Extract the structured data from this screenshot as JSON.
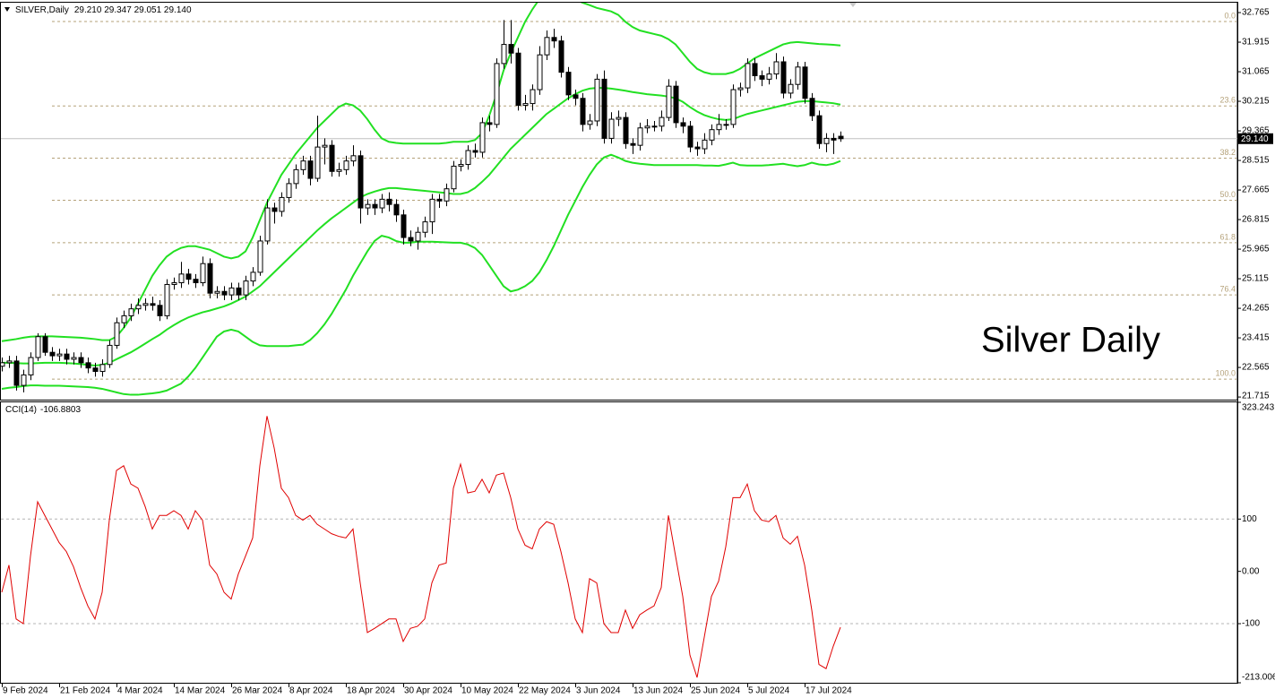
{
  "chart_data": [
    {
      "type": "candlestick",
      "title": "SILVER,Daily",
      "subtitle": "29.210 29.347 29.051 29.140",
      "annotation": "Silver Daily",
      "categories": [
        "9 Feb 2024",
        null,
        null,
        null,
        null,
        null,
        null,
        null,
        "21 Feb 2024",
        null,
        null,
        null,
        null,
        null,
        null,
        null,
        "4 Mar 2024",
        null,
        null,
        null,
        null,
        null,
        null,
        null,
        "14 Mar 2024",
        null,
        null,
        null,
        null,
        null,
        null,
        null,
        "26 Mar 2024",
        null,
        null,
        null,
        null,
        null,
        null,
        null,
        "8 Apr 2024",
        null,
        null,
        null,
        null,
        null,
        null,
        null,
        "18 Apr 2024",
        null,
        null,
        null,
        null,
        null,
        null,
        null,
        "30 Apr 2024",
        null,
        null,
        null,
        null,
        null,
        null,
        null,
        "10 May 2024",
        null,
        null,
        null,
        null,
        null,
        null,
        null,
        "22 May 2024",
        null,
        null,
        null,
        null,
        null,
        null,
        null,
        "3 Jun 2024",
        null,
        null,
        null,
        null,
        null,
        null,
        null,
        "13 Jun 2024",
        null,
        null,
        null,
        null,
        null,
        null,
        null,
        "25 Jun 2024",
        null,
        null,
        null,
        null,
        null,
        null,
        null,
        "5 Jul 2024",
        null,
        null,
        null,
        null,
        null,
        null,
        null,
        "17 Jul 2024",
        null,
        null,
        null,
        null,
        null
      ],
      "open": [
        22.6,
        22.7,
        22.75,
        22.05,
        22.35,
        22.85,
        23.45,
        23.0,
        22.9,
        22.95,
        22.8,
        22.85,
        22.7,
        22.55,
        22.45,
        22.65,
        23.2,
        23.85,
        24.05,
        24.25,
        24.35,
        24.4,
        24.35,
        24.05,
        24.95,
        25.0,
        25.25,
        25.1,
        25.0,
        25.55,
        24.7,
        24.75,
        24.65,
        24.85,
        24.65,
        25.05,
        25.3,
        26.2,
        27.15,
        27.05,
        27.45,
        27.85,
        28.25,
        28.5,
        28.0,
        28.9,
        28.95,
        28.2,
        28.25,
        28.5,
        28.65,
        27.15,
        27.25,
        27.15,
        27.4,
        27.25,
        26.95,
        26.3,
        26.2,
        26.45,
        26.75,
        27.4,
        27.35,
        27.7,
        28.35,
        28.4,
        28.8,
        28.75,
        29.6,
        29.55,
        31.3,
        31.85,
        31.6,
        30.1,
        30.15,
        30.55,
        31.55,
        32.05,
        31.95,
        31.05,
        30.4,
        30.3,
        29.55,
        29.65,
        30.85,
        29.15,
        29.7,
        29.75,
        29.0,
        28.95,
        29.45,
        29.5,
        29.5,
        29.75,
        30.65,
        29.6,
        29.5,
        28.9,
        28.85,
        29.1,
        29.4,
        29.55,
        29.55,
        30.55,
        30.6,
        31.3,
        30.95,
        30.85,
        31.0,
        31.35,
        30.45,
        30.7,
        31.2,
        30.3,
        29.8,
        29.0,
        29.15,
        29.21
      ],
      "high": [
        22.85,
        22.9,
        22.9,
        22.5,
        23.0,
        23.55,
        23.55,
        23.15,
        23.1,
        23.1,
        23.0,
        23.0,
        22.85,
        22.7,
        22.8,
        23.35,
        24.0,
        24.2,
        24.4,
        24.55,
        24.55,
        24.6,
        24.5,
        25.1,
        25.15,
        25.6,
        25.4,
        25.25,
        25.75,
        25.7,
        24.9,
        24.9,
        25.0,
        25.0,
        25.2,
        25.45,
        26.35,
        27.4,
        27.3,
        27.6,
        28.0,
        28.4,
        28.65,
        28.65,
        29.8,
        29.15,
        29.1,
        28.45,
        28.65,
        28.95,
        28.8,
        27.4,
        27.4,
        27.55,
        27.6,
        27.4,
        27.1,
        26.5,
        26.6,
        26.9,
        27.55,
        27.55,
        27.85,
        28.5,
        28.55,
        28.95,
        29.0,
        29.75,
        29.8,
        31.45,
        32.55,
        32.55,
        31.75,
        30.4,
        30.7,
        31.8,
        32.25,
        32.3,
        32.1,
        31.2,
        30.55,
        30.45,
        29.85,
        31.0,
        31.1,
        29.9,
        29.95,
        29.9,
        29.15,
        29.6,
        29.7,
        29.65,
        29.95,
        30.85,
        30.8,
        29.75,
        29.65,
        29.05,
        29.3,
        29.55,
        29.85,
        29.7,
        30.7,
        30.75,
        31.45,
        31.45,
        31.1,
        31.2,
        31.6,
        31.5,
        30.85,
        31.35,
        31.35,
        30.45,
        29.95,
        29.3,
        29.3,
        29.347
      ],
      "low": [
        22.45,
        22.55,
        21.9,
        21.85,
        22.2,
        22.75,
        22.9,
        22.75,
        22.75,
        22.65,
        22.65,
        22.55,
        22.4,
        22.3,
        22.3,
        22.55,
        23.1,
        23.7,
        23.9,
        24.1,
        24.2,
        24.2,
        23.9,
        23.95,
        24.8,
        24.85,
        24.95,
        24.85,
        24.9,
        24.55,
        24.55,
        24.5,
        24.5,
        24.5,
        24.5,
        24.9,
        25.2,
        26.1,
        26.7,
        26.9,
        27.3,
        27.7,
        28.1,
        27.8,
        27.9,
        28.4,
        28.05,
        28.05,
        28.1,
        28.35,
        26.7,
        26.95,
        26.95,
        27.0,
        27.05,
        26.75,
        26.1,
        26.05,
        25.95,
        26.3,
        26.4,
        27.15,
        27.2,
        27.6,
        28.2,
        28.25,
        28.6,
        28.6,
        29.35,
        29.45,
        31.15,
        31.3,
        29.95,
        29.95,
        29.95,
        30.4,
        31.4,
        31.75,
        30.9,
        30.25,
        30.1,
        29.35,
        29.4,
        29.5,
        29.0,
        29.0,
        29.5,
        28.85,
        28.7,
        28.8,
        29.3,
        29.35,
        29.35,
        29.65,
        29.45,
        29.3,
        28.75,
        28.65,
        28.7,
        28.95,
        29.25,
        29.4,
        29.45,
        30.35,
        30.45,
        30.8,
        30.65,
        30.7,
        30.85,
        30.3,
        30.3,
        30.55,
        30.15,
        29.65,
        28.85,
        28.75,
        28.7,
        29.051
      ],
      "close": [
        22.7,
        22.75,
        22.05,
        22.35,
        22.85,
        23.45,
        23.0,
        22.9,
        22.95,
        22.8,
        22.85,
        22.7,
        22.55,
        22.45,
        22.65,
        23.2,
        23.85,
        24.05,
        24.25,
        24.35,
        24.4,
        24.35,
        24.05,
        24.95,
        25.0,
        25.25,
        25.1,
        25.0,
        25.55,
        24.7,
        24.75,
        24.65,
        24.85,
        24.65,
        25.05,
        25.3,
        26.2,
        27.15,
        27.05,
        27.45,
        27.85,
        28.25,
        28.5,
        28.0,
        28.9,
        28.95,
        28.2,
        28.25,
        28.5,
        28.65,
        27.15,
        27.25,
        27.15,
        27.4,
        27.25,
        26.95,
        26.3,
        26.2,
        26.45,
        26.75,
        27.4,
        27.35,
        27.7,
        28.35,
        28.4,
        28.8,
        28.75,
        29.6,
        29.55,
        31.3,
        31.85,
        31.6,
        30.1,
        30.15,
        30.55,
        31.55,
        32.05,
        31.95,
        31.05,
        30.4,
        30.3,
        29.55,
        29.65,
        30.85,
        29.15,
        29.7,
        29.75,
        29.0,
        28.95,
        29.45,
        29.5,
        29.5,
        29.75,
        30.65,
        29.6,
        29.5,
        28.9,
        28.85,
        29.1,
        29.4,
        29.55,
        29.55,
        30.55,
        30.6,
        31.3,
        30.95,
        30.85,
        31.0,
        31.35,
        30.45,
        30.7,
        31.2,
        30.3,
        29.8,
        29.0,
        29.15,
        29.1,
        29.14
      ],
      "overlays": [
        {
          "color": "#22e022",
          "values": [
            23.32,
            23.35,
            23.38,
            23.42,
            23.45,
            23.46,
            23.46,
            23.46,
            23.45,
            23.44,
            23.43,
            23.42,
            23.4,
            23.38,
            23.35,
            23.35,
            23.45,
            23.7,
            24.0,
            24.4,
            24.8,
            25.2,
            25.5,
            25.75,
            25.9,
            26.0,
            26.05,
            26.05,
            26.0,
            25.95,
            25.85,
            25.75,
            25.7,
            25.75,
            25.9,
            26.3,
            26.8,
            27.3,
            27.7,
            28.1,
            28.4,
            28.7,
            28.95,
            29.2,
            29.45,
            29.65,
            29.85,
            30.05,
            30.15,
            30.1,
            29.95,
            29.7,
            29.4,
            29.15,
            29.05,
            29.02,
            29.0,
            29.0,
            29.0,
            29.0,
            29.0,
            29.0,
            29.02,
            29.05,
            29.05,
            29.05,
            29.1,
            29.3,
            29.8,
            30.4,
            31.1,
            31.6,
            32.05,
            32.5,
            32.85,
            33.15,
            33.35,
            33.4,
            33.35,
            33.25,
            33.15,
            33.05,
            32.98,
            32.9,
            32.85,
            32.8,
            32.7,
            32.5,
            32.35,
            32.25,
            32.2,
            32.15,
            32.1,
            32.0,
            31.85,
            31.6,
            31.35,
            31.15,
            31.05,
            31.0,
            31.0,
            31.0,
            31.05,
            31.15,
            31.3,
            31.45,
            31.55,
            31.65,
            31.75,
            31.85,
            31.9,
            31.92,
            31.9,
            31.88,
            31.86,
            31.85,
            31.84,
            31.82
          ]
        },
        {
          "color": "#22e022",
          "values": [
            22.7,
            22.7,
            22.69,
            22.68,
            22.68,
            22.69,
            22.7,
            22.7,
            22.7,
            22.69,
            22.68,
            22.66,
            22.64,
            22.62,
            22.64,
            22.7,
            22.8,
            22.9,
            23.0,
            23.12,
            23.25,
            23.38,
            23.5,
            23.65,
            23.78,
            23.9,
            24.0,
            24.08,
            24.15,
            24.2,
            24.26,
            24.32,
            24.4,
            24.5,
            24.6,
            24.75,
            24.9,
            25.1,
            25.3,
            25.5,
            25.7,
            25.9,
            26.1,
            26.3,
            26.5,
            26.68,
            26.85,
            27.0,
            27.15,
            27.3,
            27.45,
            27.55,
            27.62,
            27.68,
            27.72,
            27.72,
            27.7,
            27.68,
            27.66,
            27.64,
            27.62,
            27.6,
            27.58,
            27.55,
            27.55,
            27.6,
            27.72,
            27.9,
            28.1,
            28.35,
            28.6,
            28.85,
            29.05,
            29.25,
            29.45,
            29.65,
            29.85,
            30.0,
            30.15,
            30.3,
            30.42,
            30.52,
            30.58,
            30.6,
            30.6,
            30.58,
            30.55,
            30.52,
            30.48,
            30.45,
            30.42,
            30.4,
            30.38,
            30.35,
            30.3,
            30.2,
            30.05,
            29.92,
            29.82,
            29.75,
            29.7,
            29.68,
            29.7,
            29.78,
            29.85,
            29.9,
            29.95,
            30.0,
            30.05,
            30.1,
            30.15,
            30.2,
            30.22,
            30.22,
            30.2,
            30.18,
            30.16,
            30.12
          ]
        },
        {
          "color": "#22e022",
          "values": [
            21.95,
            21.98,
            22.0,
            22.03,
            22.05,
            22.05,
            22.04,
            22.04,
            22.04,
            22.03,
            22.02,
            22.01,
            22.0,
            21.98,
            21.95,
            21.9,
            21.85,
            21.8,
            21.78,
            21.78,
            21.8,
            21.82,
            21.85,
            21.9,
            22.0,
            22.1,
            22.3,
            22.55,
            22.85,
            23.15,
            23.45,
            23.6,
            23.65,
            23.6,
            23.45,
            23.3,
            23.2,
            23.18,
            23.18,
            23.18,
            23.18,
            23.2,
            23.22,
            23.35,
            23.55,
            23.8,
            24.1,
            24.45,
            24.8,
            25.2,
            25.55,
            25.9,
            26.2,
            26.35,
            26.3,
            26.2,
            26.15,
            26.15,
            26.18,
            26.18,
            26.18,
            26.17,
            26.16,
            26.15,
            26.15,
            26.1,
            26.0,
            25.8,
            25.5,
            25.2,
            24.9,
            24.75,
            24.8,
            24.9,
            25.05,
            25.3,
            25.65,
            26.05,
            26.5,
            26.95,
            27.35,
            27.75,
            28.1,
            28.4,
            28.6,
            28.68,
            28.6,
            28.5,
            28.45,
            28.42,
            28.4,
            28.38,
            28.38,
            28.38,
            28.38,
            28.38,
            28.38,
            28.38,
            28.37,
            28.37,
            28.36,
            28.4,
            28.45,
            28.38,
            28.37,
            28.37,
            28.37,
            28.38,
            28.4,
            28.42,
            28.38,
            28.35,
            28.38,
            28.45,
            28.4,
            28.38,
            28.42,
            28.5
          ]
        }
      ],
      "fib_levels": [
        {
          "label": "0.0",
          "price": 32.51
        },
        {
          "label": "23.6",
          "price": 30.08
        },
        {
          "label": "38.2",
          "price": 28.58
        },
        {
          "label": "50.0",
          "price": 27.37
        },
        {
          "label": "61.8",
          "price": 26.15
        },
        {
          "label": "76.4",
          "price": 24.65
        },
        {
          "label": "100.0",
          "price": 22.23
        }
      ],
      "fib_color": "#b5a27a",
      "current_price": {
        "value": 29.14,
        "label": "29.140"
      },
      "bull_color": "#ffffff",
      "bear_color": "#000000",
      "ylim": [
        21.64,
        33.075
      ],
      "yticks": [
        32.765,
        31.915,
        31.065,
        30.215,
        29.365,
        28.515,
        27.665,
        26.815,
        25.965,
        25.115,
        24.265,
        23.415,
        22.565,
        21.715
      ]
    },
    {
      "type": "line",
      "title": "CCI(14)",
      "color": "#e00000",
      "values": [
        -40,
        12,
        -91,
        -100,
        29,
        133,
        107,
        81,
        55,
        38,
        9,
        -31,
        -66,
        -91,
        -40,
        98,
        193,
        202,
        167,
        159,
        124,
        81,
        107,
        107,
        116,
        107,
        81,
        116,
        98,
        12,
        -5,
        -40,
        -53,
        -5,
        29,
        64,
        202,
        297,
        236,
        159,
        141,
        107,
        98,
        107,
        90,
        81,
        72,
        67,
        64,
        81,
        -22,
        -117,
        -109,
        -100,
        -91,
        -91,
        -134,
        -109,
        -105,
        -91,
        -22,
        12,
        16,
        159,
        205,
        150,
        153,
        176,
        150,
        184,
        188,
        141,
        81,
        50,
        43,
        81,
        95,
        90,
        38,
        -22,
        -91,
        -117,
        -14,
        -22,
        -100,
        -117,
        -117,
        -74,
        -109,
        -83,
        -74,
        -66,
        -31,
        107,
        29,
        -48,
        -160,
        -203,
        -126,
        -48,
        -19,
        47,
        141,
        141,
        167,
        116,
        98,
        95,
        107,
        64,
        52,
        67,
        12,
        -74,
        -178,
        -186,
        -143,
        -106.8803
      ],
      "levels": [
        100,
        -100
      ],
      "ylim": [
        -213.006,
        323.243
      ],
      "yticks": [
        323.243,
        100,
        {
          "value": 0,
          "label": "0.00"
        },
        -100,
        -213.006
      ]
    }
  ]
}
